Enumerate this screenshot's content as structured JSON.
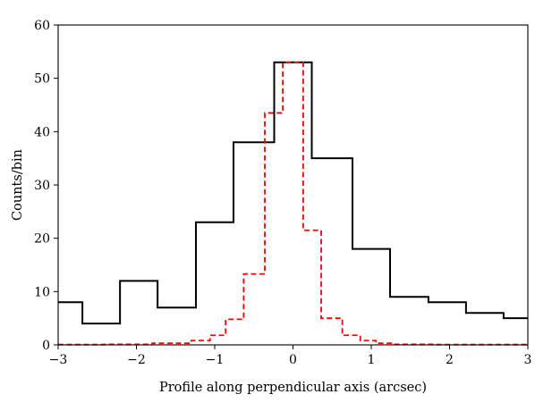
{
  "chart_data": {
    "type": "line",
    "drawstyle": "steps",
    "title": "",
    "xlabel": "Profile along perpendicular axis (arcsec)",
    "ylabel": "Counts/bin",
    "xlim": [
      -3,
      3
    ],
    "ylim": [
      0,
      60
    ],
    "xticks": [
      -3,
      -2,
      -1,
      0,
      1,
      2,
      3
    ],
    "yticks": [
      0,
      10,
      20,
      30,
      40,
      50,
      60
    ],
    "xtick_labels": [
      "−3",
      "−2",
      "−1",
      "0",
      "1",
      "2",
      "3"
    ],
    "ytick_labels": [
      "0",
      "10",
      "20",
      "30",
      "40",
      "50",
      "60"
    ],
    "grid": false,
    "legend": "none",
    "series": [
      {
        "color": "#000000",
        "line_style": "solid",
        "bin_edges": [
          -3.0,
          -2.69,
          -2.21,
          -1.73,
          -1.24,
          -0.76,
          -0.24,
          0.24,
          0.76,
          1.24,
          1.73,
          2.21,
          2.69,
          3.0
        ],
        "values": [
          8,
          4,
          12,
          7,
          23,
          38,
          53,
          35,
          18,
          9,
          8,
          6,
          5
        ]
      },
      {
        "color": "#ff0000",
        "line_style": "dashed",
        "bin_edges": [
          -3.0,
          -2.4,
          -1.8,
          -1.3,
          -1.06,
          -0.86,
          -0.63,
          -0.36,
          -0.13,
          0.13,
          0.36,
          0.63,
          0.86,
          1.06,
          1.3,
          1.8,
          3.0
        ],
        "values": [
          0.05,
          0.1,
          0.3,
          0.8,
          1.8,
          4.8,
          13.3,
          43.5,
          53,
          21.5,
          5,
          1.8,
          0.8,
          0.3,
          0.1,
          0.05
        ]
      }
    ]
  }
}
